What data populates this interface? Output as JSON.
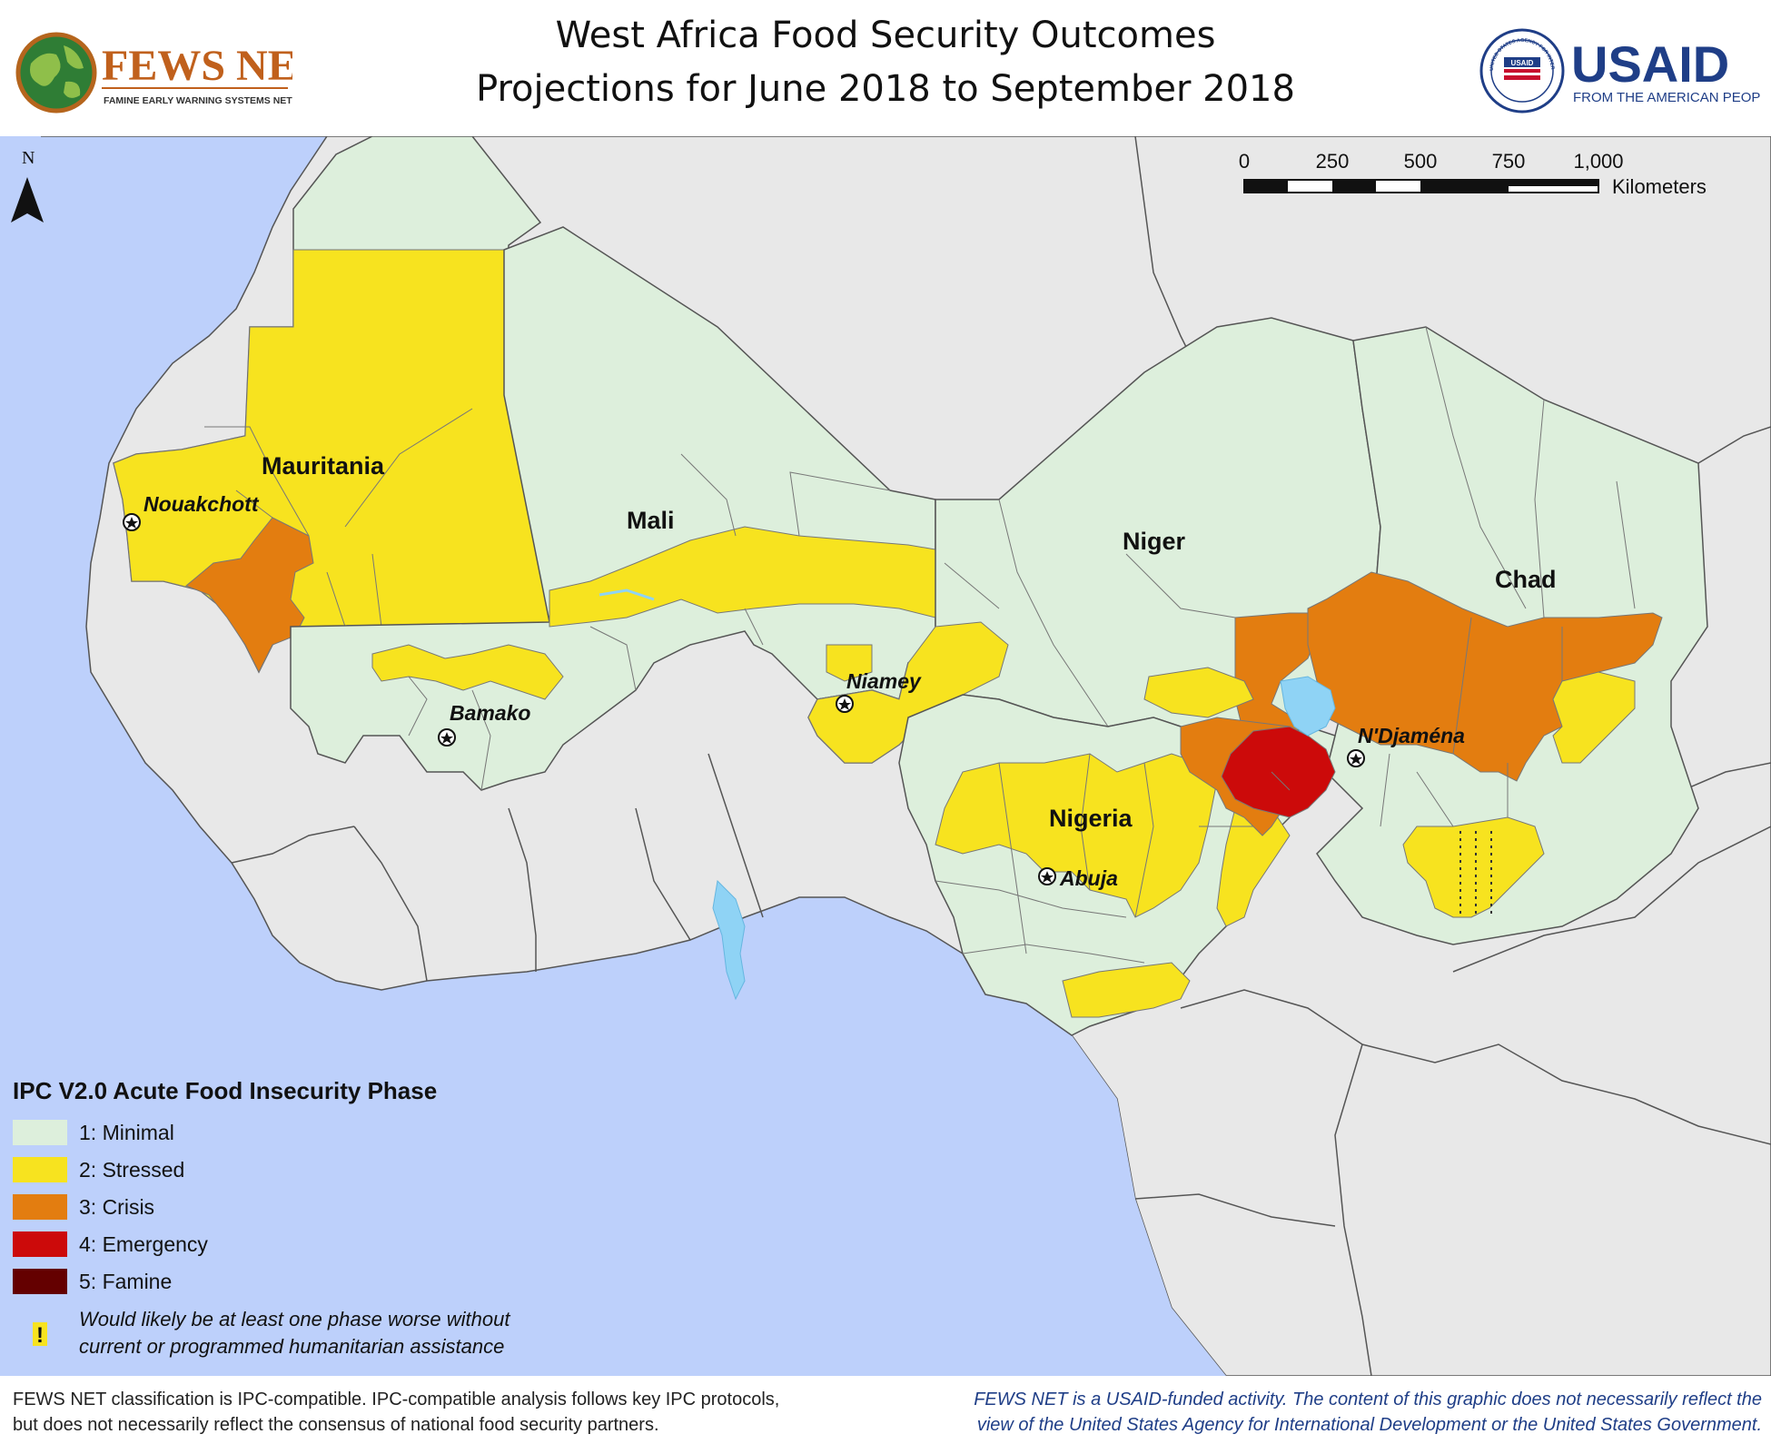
{
  "title": {
    "line1": "West Africa Food Security Outcomes",
    "line2": "Projections for June 2018 to September 2018"
  },
  "logos": {
    "left": {
      "text": "FEWS NET",
      "subtext": "FAMINE EARLY WARNING SYSTEMS NETWORK"
    },
    "right": {
      "text": "USAID",
      "subtext": "FROM THE AMERICAN PEOPLE",
      "seal_text": "UNITED STATES AGENCY FOR INTERNATIONAL DEVELOPMENT",
      "seal_inner": "USAID"
    }
  },
  "north_arrow": {
    "label": "N"
  },
  "scale_bar": {
    "ticks": [
      "0",
      "250",
      "500",
      "750",
      "1,000"
    ],
    "unit": "Kilometers"
  },
  "countries": [
    {
      "name": "Mauritania"
    },
    {
      "name": "Mali"
    },
    {
      "name": "Niger"
    },
    {
      "name": "Chad"
    },
    {
      "name": "Nigeria"
    }
  ],
  "cities": [
    {
      "name": "Nouakchott"
    },
    {
      "name": "Bamako"
    },
    {
      "name": "Niamey"
    },
    {
      "name": "N'Djaména"
    },
    {
      "name": "Abuja"
    }
  ],
  "legend": {
    "title": "IPC V2.0 Acute Food Insecurity Phase",
    "items": [
      {
        "label": "1: Minimal",
        "color": "#ddefdc"
      },
      {
        "label": "2: Stressed",
        "color": "#f7e31f"
      },
      {
        "label": "3: Crisis",
        "color": "#e37d10"
      },
      {
        "label": "4: Emergency",
        "color": "#cc0a0a"
      },
      {
        "label": "5: Famine",
        "color": "#640000"
      }
    ],
    "note_symbol": "!",
    "note_line1": "Would likely be at least one phase worse without",
    "note_line2": "current or programmed humanitarian assistance"
  },
  "colors": {
    "ocean": "#bdd0fb",
    "other_land": "#e8e8e8",
    "border": "#555555",
    "water": "#8fd3f5",
    "footer_right_text": "#1f3e87"
  },
  "footer": {
    "left_line1": "FEWS NET classification is IPC-compatible. IPC-compatible analysis follows key IPC protocols,",
    "left_line2": "but does not necessarily reflect the consensus of national food security partners.",
    "right_line1": "FEWS NET is a USAID-funded activity. The content of this graphic does not necessarily reflect the",
    "right_line2": "view of the United States Agency for International Development or the United States Government."
  }
}
